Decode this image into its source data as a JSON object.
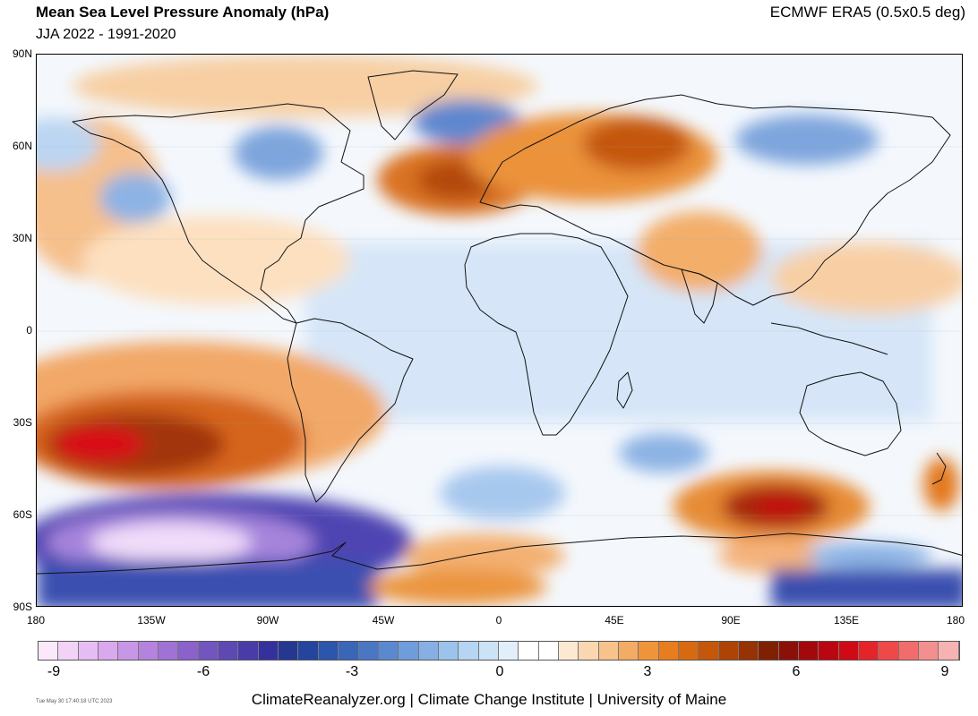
{
  "header": {
    "title": "Mean Sea Level Pressure Anomaly (hPa)",
    "subtitle": "JJA 2022 - 1991-2020",
    "source": "ECMWF ERA5 (0.5x0.5 deg)"
  },
  "map": {
    "lat_labels": [
      "90N",
      "60N",
      "30N",
      "0",
      "30S",
      "60S",
      "90S"
    ],
    "lon_labels": [
      "180",
      "135W",
      "90W",
      "45W",
      "0",
      "45E",
      "90E",
      "135E",
      "180"
    ]
  },
  "colorbar": {
    "tick_labels": [
      "-9",
      "-6",
      "-3",
      "0",
      "3",
      "6",
      "9"
    ],
    "colors": [
      "#fbe9fb",
      "#f2d2f7",
      "#e6bdf2",
      "#d9a8ee",
      "#c796e6",
      "#b583de",
      "#9f72d3",
      "#8a62c9",
      "#7355bf",
      "#5e48b4",
      "#4a3ca8",
      "#35319c",
      "#263791",
      "#25449e",
      "#2c55ac",
      "#3a66b8",
      "#4a77c3",
      "#5b89cf",
      "#6f9cda",
      "#86b0e4",
      "#9cc3ec",
      "#b5d5f3",
      "#cce3f7",
      "#e2effb",
      "#ffffff",
      "#ffffff",
      "#fce9d2",
      "#fad7b0",
      "#f7c28b",
      "#f4ab63",
      "#f0943c",
      "#e87d20",
      "#d76a10",
      "#c4570a",
      "#ad4406",
      "#963203",
      "#7f2101",
      "#8a1008",
      "#a3090c",
      "#ba0610",
      "#d00a14",
      "#e5242a",
      "#ee4848",
      "#f26c6c",
      "#f48f8f",
      "#f7b2b2"
    ]
  },
  "footer": {
    "timestamp": "Tue May 30 17:40:18 UTC 2023",
    "credit": "ClimateReanalyzer.org | Climate Change Institute | University of Maine"
  }
}
